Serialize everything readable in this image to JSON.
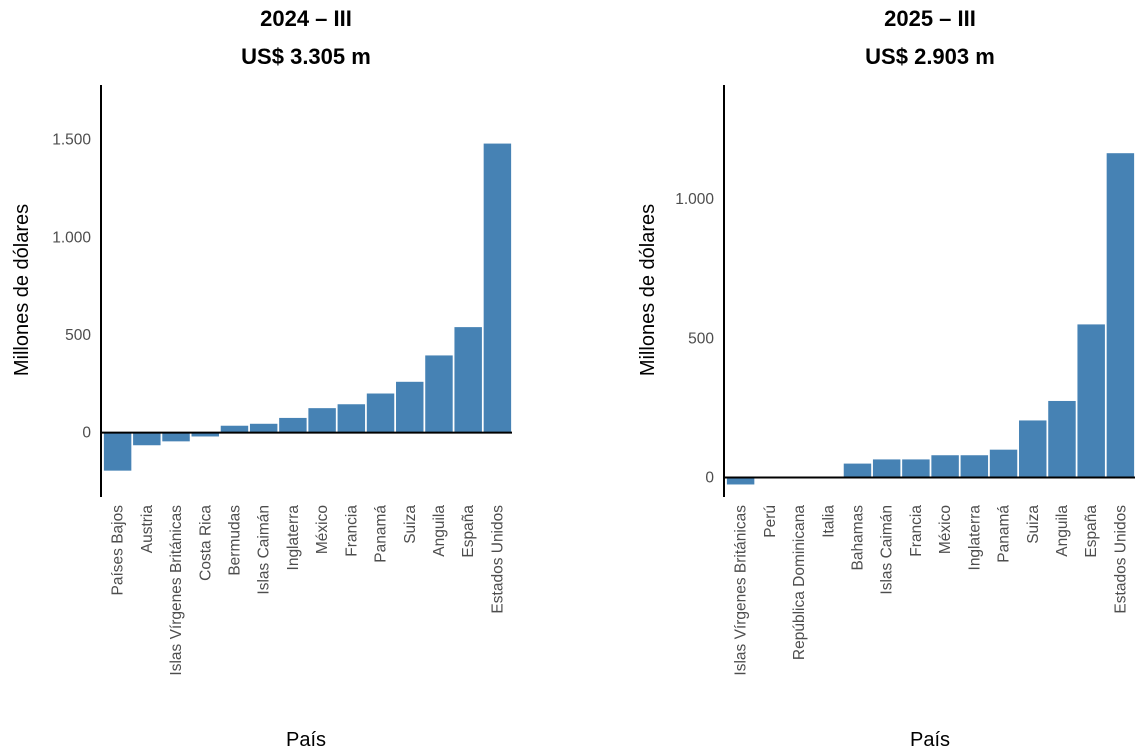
{
  "chart_data": [
    {
      "type": "bar",
      "title": "2024 – III",
      "subtitle": "US$  3.305  m",
      "xlabel": "País",
      "ylabel": "Millones de dólares",
      "ylim": [
        -330,
        1780
      ],
      "yticks": [
        0,
        500,
        1000,
        1500
      ],
      "ytick_labels": [
        "0",
        "500",
        "1.000",
        "1.500"
      ],
      "categories": [
        "Países Bajos",
        "Austria",
        "Islas Vírgenes Británicas",
        "Costa Rica",
        "Bermudas",
        "Islas Caimán",
        "Inglaterra",
        "México",
        "Francia",
        "Panamá",
        "Suiza",
        "Anguila",
        "España",
        "Estados Unidos"
      ],
      "values": [
        -195,
        -65,
        -45,
        -20,
        35,
        45,
        75,
        125,
        145,
        200,
        260,
        395,
        540,
        1480
      ],
      "color": "#4682B4",
      "grid": false
    },
    {
      "type": "bar",
      "title": "2025 – III",
      "subtitle": "US$  2.903  m",
      "xlabel": "País",
      "ylabel": "Millones de dólares",
      "ylim": [
        -70,
        1410
      ],
      "yticks": [
        0,
        500,
        1000
      ],
      "ytick_labels": [
        "0",
        "500",
        "1.000"
      ],
      "categories": [
        "Islas Vírgenes Británicas",
        "Perú",
        "República Dominicana",
        "Italia",
        "Bahamas",
        "Islas Caimán",
        "Francia",
        "México",
        "Inglaterra",
        "Panamá",
        "Suiza",
        "Anguila",
        "España",
        "Estados Unidos"
      ],
      "values": [
        -25,
        -3,
        -2,
        -1,
        50,
        65,
        65,
        80,
        80,
        100,
        205,
        275,
        550,
        1165
      ],
      "color": "#4682B4",
      "grid": false
    }
  ]
}
